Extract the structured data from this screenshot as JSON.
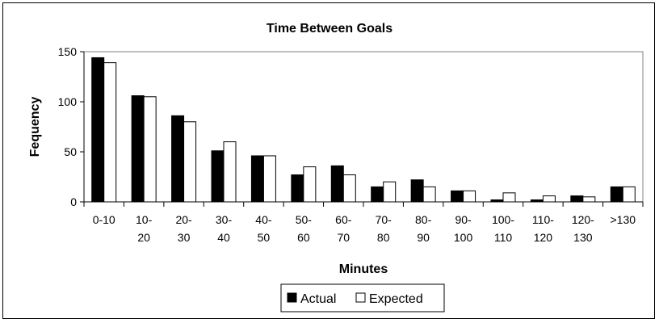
{
  "chart_data": {
    "type": "bar",
    "title": "Time Between Goals",
    "xlabel": "Minutes",
    "ylabel": "Fequency",
    "ylim": [
      0,
      150
    ],
    "yticks": [
      0,
      50,
      100,
      150
    ],
    "categories": [
      [
        "0-10"
      ],
      [
        "10-",
        "20"
      ],
      [
        "20-",
        "30"
      ],
      [
        "30-",
        "40"
      ],
      [
        "40-",
        "50"
      ],
      [
        "50-",
        "60"
      ],
      [
        "60-",
        "70"
      ],
      [
        "70-",
        "80"
      ],
      [
        "80-",
        "90"
      ],
      [
        "90-",
        "100"
      ],
      [
        "100-",
        "110"
      ],
      [
        "110-",
        "120"
      ],
      [
        "120-",
        "130"
      ],
      [
        ">130"
      ]
    ],
    "series": [
      {
        "name": "Actual",
        "color": "#000000",
        "values": [
          144,
          106,
          86,
          51,
          46,
          27,
          36,
          15,
          22,
          11,
          2,
          2,
          6,
          15
        ]
      },
      {
        "name": "Expected",
        "color": "#ffffff",
        "values": [
          139,
          105,
          80,
          60,
          46,
          35,
          27,
          20,
          15,
          11,
          9,
          6,
          5,
          15
        ]
      }
    ],
    "legend_position": "bottom",
    "grid": false
  }
}
